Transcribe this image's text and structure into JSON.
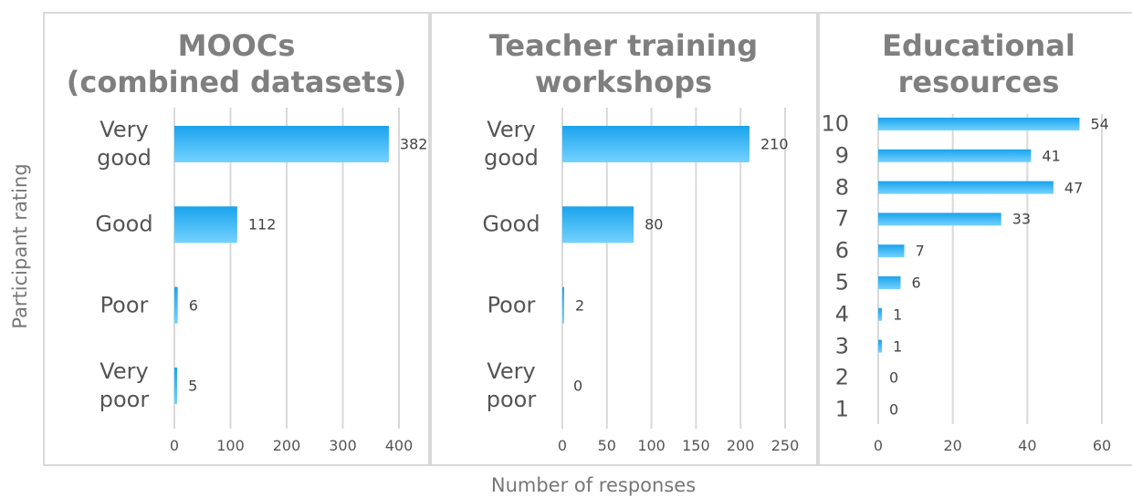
{
  "y_label": "Participant rating",
  "x_label": "Number of responses",
  "chart_data": [
    {
      "type": "barh",
      "title": "MOOCs\n(combined datasets)",
      "categories": [
        "Very good",
        "Good",
        "Poor",
        "Very poor"
      ],
      "values": [
        382,
        112,
        6,
        5
      ],
      "color": "#29aef0",
      "xlim": [
        0,
        400
      ],
      "xticks": [
        0,
        100,
        200,
        300,
        400
      ],
      "grid": true
    },
    {
      "type": "barh",
      "title": "Teacher training\nworkshops",
      "categories": [
        "Very good",
        "Good",
        "Poor",
        "Very poor"
      ],
      "values": [
        210,
        80,
        2,
        0
      ],
      "color": "#29aef0",
      "xlim": [
        0,
        250
      ],
      "xticks": [
        0,
        50,
        100,
        150,
        200,
        250
      ],
      "grid": true
    },
    {
      "type": "barh",
      "title": "Educational\nresources",
      "categories": [
        "10",
        "9",
        "8",
        "7",
        "6",
        "5",
        "4",
        "3",
        "2",
        "1"
      ],
      "values": [
        54,
        41,
        47,
        33,
        7,
        6,
        1,
        1,
        0,
        0
      ],
      "color": "#29aef0",
      "xlim": [
        0,
        60
      ],
      "xticks": [
        0,
        20,
        40,
        60
      ],
      "grid": true
    }
  ]
}
